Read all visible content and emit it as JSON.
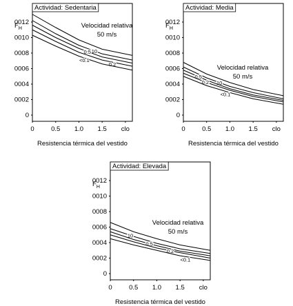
{
  "chart_data": [
    {
      "type": "line",
      "title": "Actividad: Sedentaria",
      "annotation": "Velocidad relativa",
      "ylabel": "F",
      "ylabel_subscript": "H",
      "xlabel": "Resistencia térmica del vestido",
      "x": [
        0,
        0.5,
        1,
        1.5,
        2.15
      ],
      "xlim": [
        0,
        2.15
      ],
      "xticks": [
        0,
        0.5,
        {
          "value": 1,
          "label": "1.0"
        },
        1.5,
        {
          "value": 2,
          "label": "clo"
        }
      ],
      "ylim": [
        -0.0008,
        0.0144
      ],
      "yticks": [
        0,
        {
          "value": 0.002,
          "label": "0002"
        },
        {
          "value": 0.004,
          "label": "0004"
        },
        {
          "value": 0.006,
          "label": "0006"
        },
        {
          "value": 0.008,
          "label": "0008"
        },
        {
          "value": 0.01,
          "label": "0010"
        },
        {
          "value": 0.012,
          "label": "0012"
        }
      ],
      "series": [
        {
          "name": "50 m/s",
          "color": "#000000",
          "values": [
            0.013,
            0.0113,
            0.0097,
            0.0085,
            0.0077
          ]
        },
        {
          "name": "10",
          "color": "#000000",
          "values": [
            0.0122,
            0.0105,
            0.009,
            0.0079,
            0.0071
          ]
        },
        {
          "name": "0.5",
          "color": "#000000",
          "values": [
            0.0116,
            0.01,
            0.0086,
            0.0075,
            0.0067
          ]
        },
        {
          "name": "0.2",
          "color": "#000000",
          "values": [
            0.011,
            0.0095,
            0.0081,
            0.0071,
            0.0063
          ]
        },
        {
          "name": "<0.1",
          "color": "#000000",
          "values": [
            0.0103,
            0.0089,
            0.0076,
            0.0066,
            0.0058
          ]
        }
      ]
    },
    {
      "type": "line",
      "title": "Actividad: Media",
      "annotation": "Velocidad relativa",
      "ylabel": "F",
      "ylabel_subscript": "H",
      "xlabel": "Resistencia térmica del vestido",
      "x": [
        0,
        0.5,
        1,
        1.5,
        2.15
      ],
      "xlim": [
        0,
        2.15
      ],
      "xticks": [
        0,
        0.5,
        {
          "value": 1,
          "label": "1.0"
        },
        1.5,
        {
          "value": 2,
          "label": "clo"
        }
      ],
      "ylim": [
        -0.0008,
        0.0144
      ],
      "yticks": [
        0,
        {
          "value": 0.002,
          "label": "0002"
        },
        {
          "value": 0.004,
          "label": "0004"
        },
        {
          "value": 0.006,
          "label": "0006"
        },
        {
          "value": 0.008,
          "label": "0008"
        },
        {
          "value": 0.01,
          "label": "0010"
        },
        {
          "value": 0.012,
          "label": "0012"
        }
      ],
      "series": [
        {
          "name": "50 m/s",
          "color": "#000000",
          "values": [
            0.0068,
            0.0053,
            0.0042,
            0.0033,
            0.0025
          ]
        },
        {
          "name": "10",
          "color": "#000000",
          "values": [
            0.0062,
            0.0048,
            0.0037,
            0.0029,
            0.0021
          ]
        },
        {
          "name": "0.5",
          "color": "#000000",
          "values": [
            0.0058,
            0.0045,
            0.0034,
            0.0026,
            0.0019
          ]
        },
        {
          "name": "0.2",
          "color": "#000000",
          "values": [
            0.0054,
            0.0042,
            0.0032,
            0.0024,
            0.0017
          ]
        },
        {
          "name": "<0.1",
          "color": "#000000",
          "values": [
            0.005,
            0.0038,
            0.0029,
            0.0021,
            0.0014
          ]
        }
      ]
    },
    {
      "type": "line",
      "title": "Actividad: Elevada",
      "annotation": "Velocidad relativa",
      "ylabel": "F",
      "ylabel_subscript": "H",
      "xlabel": "Resistencia térmica del vestido",
      "x": [
        0,
        0.5,
        1,
        1.5,
        2.15
      ],
      "xlim": [
        0,
        2.15
      ],
      "xticks": [
        0,
        0.5,
        {
          "value": 1,
          "label": "1.0"
        },
        1.5,
        {
          "value": 2,
          "label": "clo"
        }
      ],
      "ylim": [
        -0.0008,
        0.0144
      ],
      "yticks": [
        0,
        {
          "value": 0.002,
          "label": "0002"
        },
        {
          "value": 0.004,
          "label": "0004"
        },
        {
          "value": 0.006,
          "label": "0006"
        },
        {
          "value": 0.008,
          "label": "0008"
        },
        {
          "value": 0.01,
          "label": "0010"
        },
        {
          "value": 0.012,
          "label": "0012"
        }
      ],
      "series": [
        {
          "name": "50 m/s",
          "color": "#000000",
          "values": [
            0.0066,
            0.0054,
            0.0045,
            0.0037,
            0.003
          ]
        },
        {
          "name": "10",
          "color": "#000000",
          "values": [
            0.0058,
            0.0048,
            0.0039,
            0.0032,
            0.0026
          ]
        },
        {
          "name": "0.5",
          "color": "#000000",
          "values": [
            0.0054,
            0.0044,
            0.0036,
            0.0029,
            0.0023
          ]
        },
        {
          "name": "0.2",
          "color": "#000000",
          "values": [
            0.005,
            0.0041,
            0.0033,
            0.0027,
            0.002
          ]
        },
        {
          "name": "<0.1",
          "color": "#000000",
          "values": [
            0.0045,
            0.0037,
            0.003,
            0.0023,
            0.0017
          ]
        }
      ]
    }
  ]
}
